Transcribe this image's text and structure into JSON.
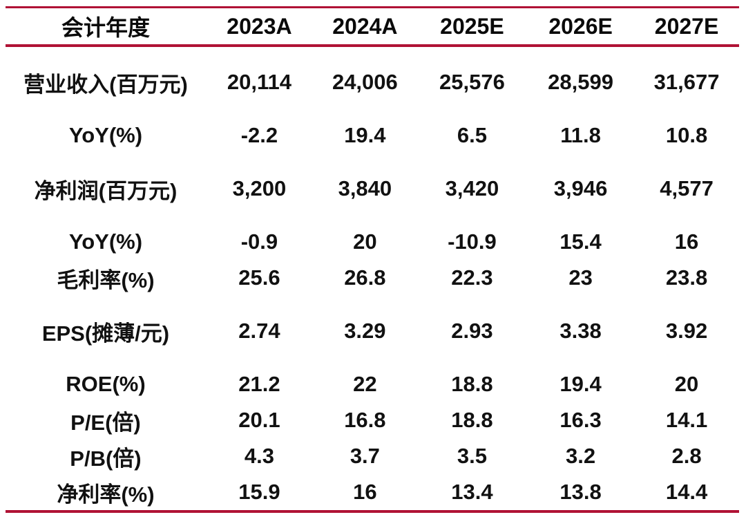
{
  "accent_color": "#b01235",
  "text_color": "#111111",
  "table": {
    "header": {
      "label": "会计年度",
      "columns": [
        "2023A",
        "2024A",
        "2025E",
        "2026E",
        "2027E"
      ]
    },
    "rows": [
      {
        "label": "营业收入(百万元)",
        "values": [
          "20,114",
          "24,006",
          "25,576",
          "28,599",
          "31,677"
        ]
      },
      {
        "label": "YoY(%)",
        "values": [
          "-2.2",
          "19.4",
          "6.5",
          "11.8",
          "10.8"
        ]
      },
      {
        "label": "净利润(百万元)",
        "values": [
          "3,200",
          "3,840",
          "3,420",
          "3,946",
          "4,577"
        ]
      },
      {
        "label": "YoY(%)",
        "values": [
          "-0.9",
          "20",
          "-10.9",
          "15.4",
          "16"
        ]
      },
      {
        "label": "毛利率(%)",
        "values": [
          "25.6",
          "26.8",
          "22.3",
          "23",
          "23.8"
        ]
      },
      {
        "label": "EPS(摊薄/元)",
        "values": [
          "2.74",
          "3.29",
          "2.93",
          "3.38",
          "3.92"
        ]
      },
      {
        "label": "ROE(%)",
        "values": [
          "21.2",
          "22",
          "18.8",
          "19.4",
          "20"
        ]
      },
      {
        "label": "P/E(倍)",
        "values": [
          "20.1",
          "16.8",
          "18.8",
          "16.3",
          "14.1"
        ]
      },
      {
        "label": "P/B(倍)",
        "values": [
          "4.3",
          "3.7",
          "3.5",
          "3.2",
          "2.8"
        ]
      },
      {
        "label": "净利率(%)",
        "values": [
          "15.9",
          "16",
          "13.4",
          "13.8",
          "14.4"
        ]
      }
    ]
  }
}
